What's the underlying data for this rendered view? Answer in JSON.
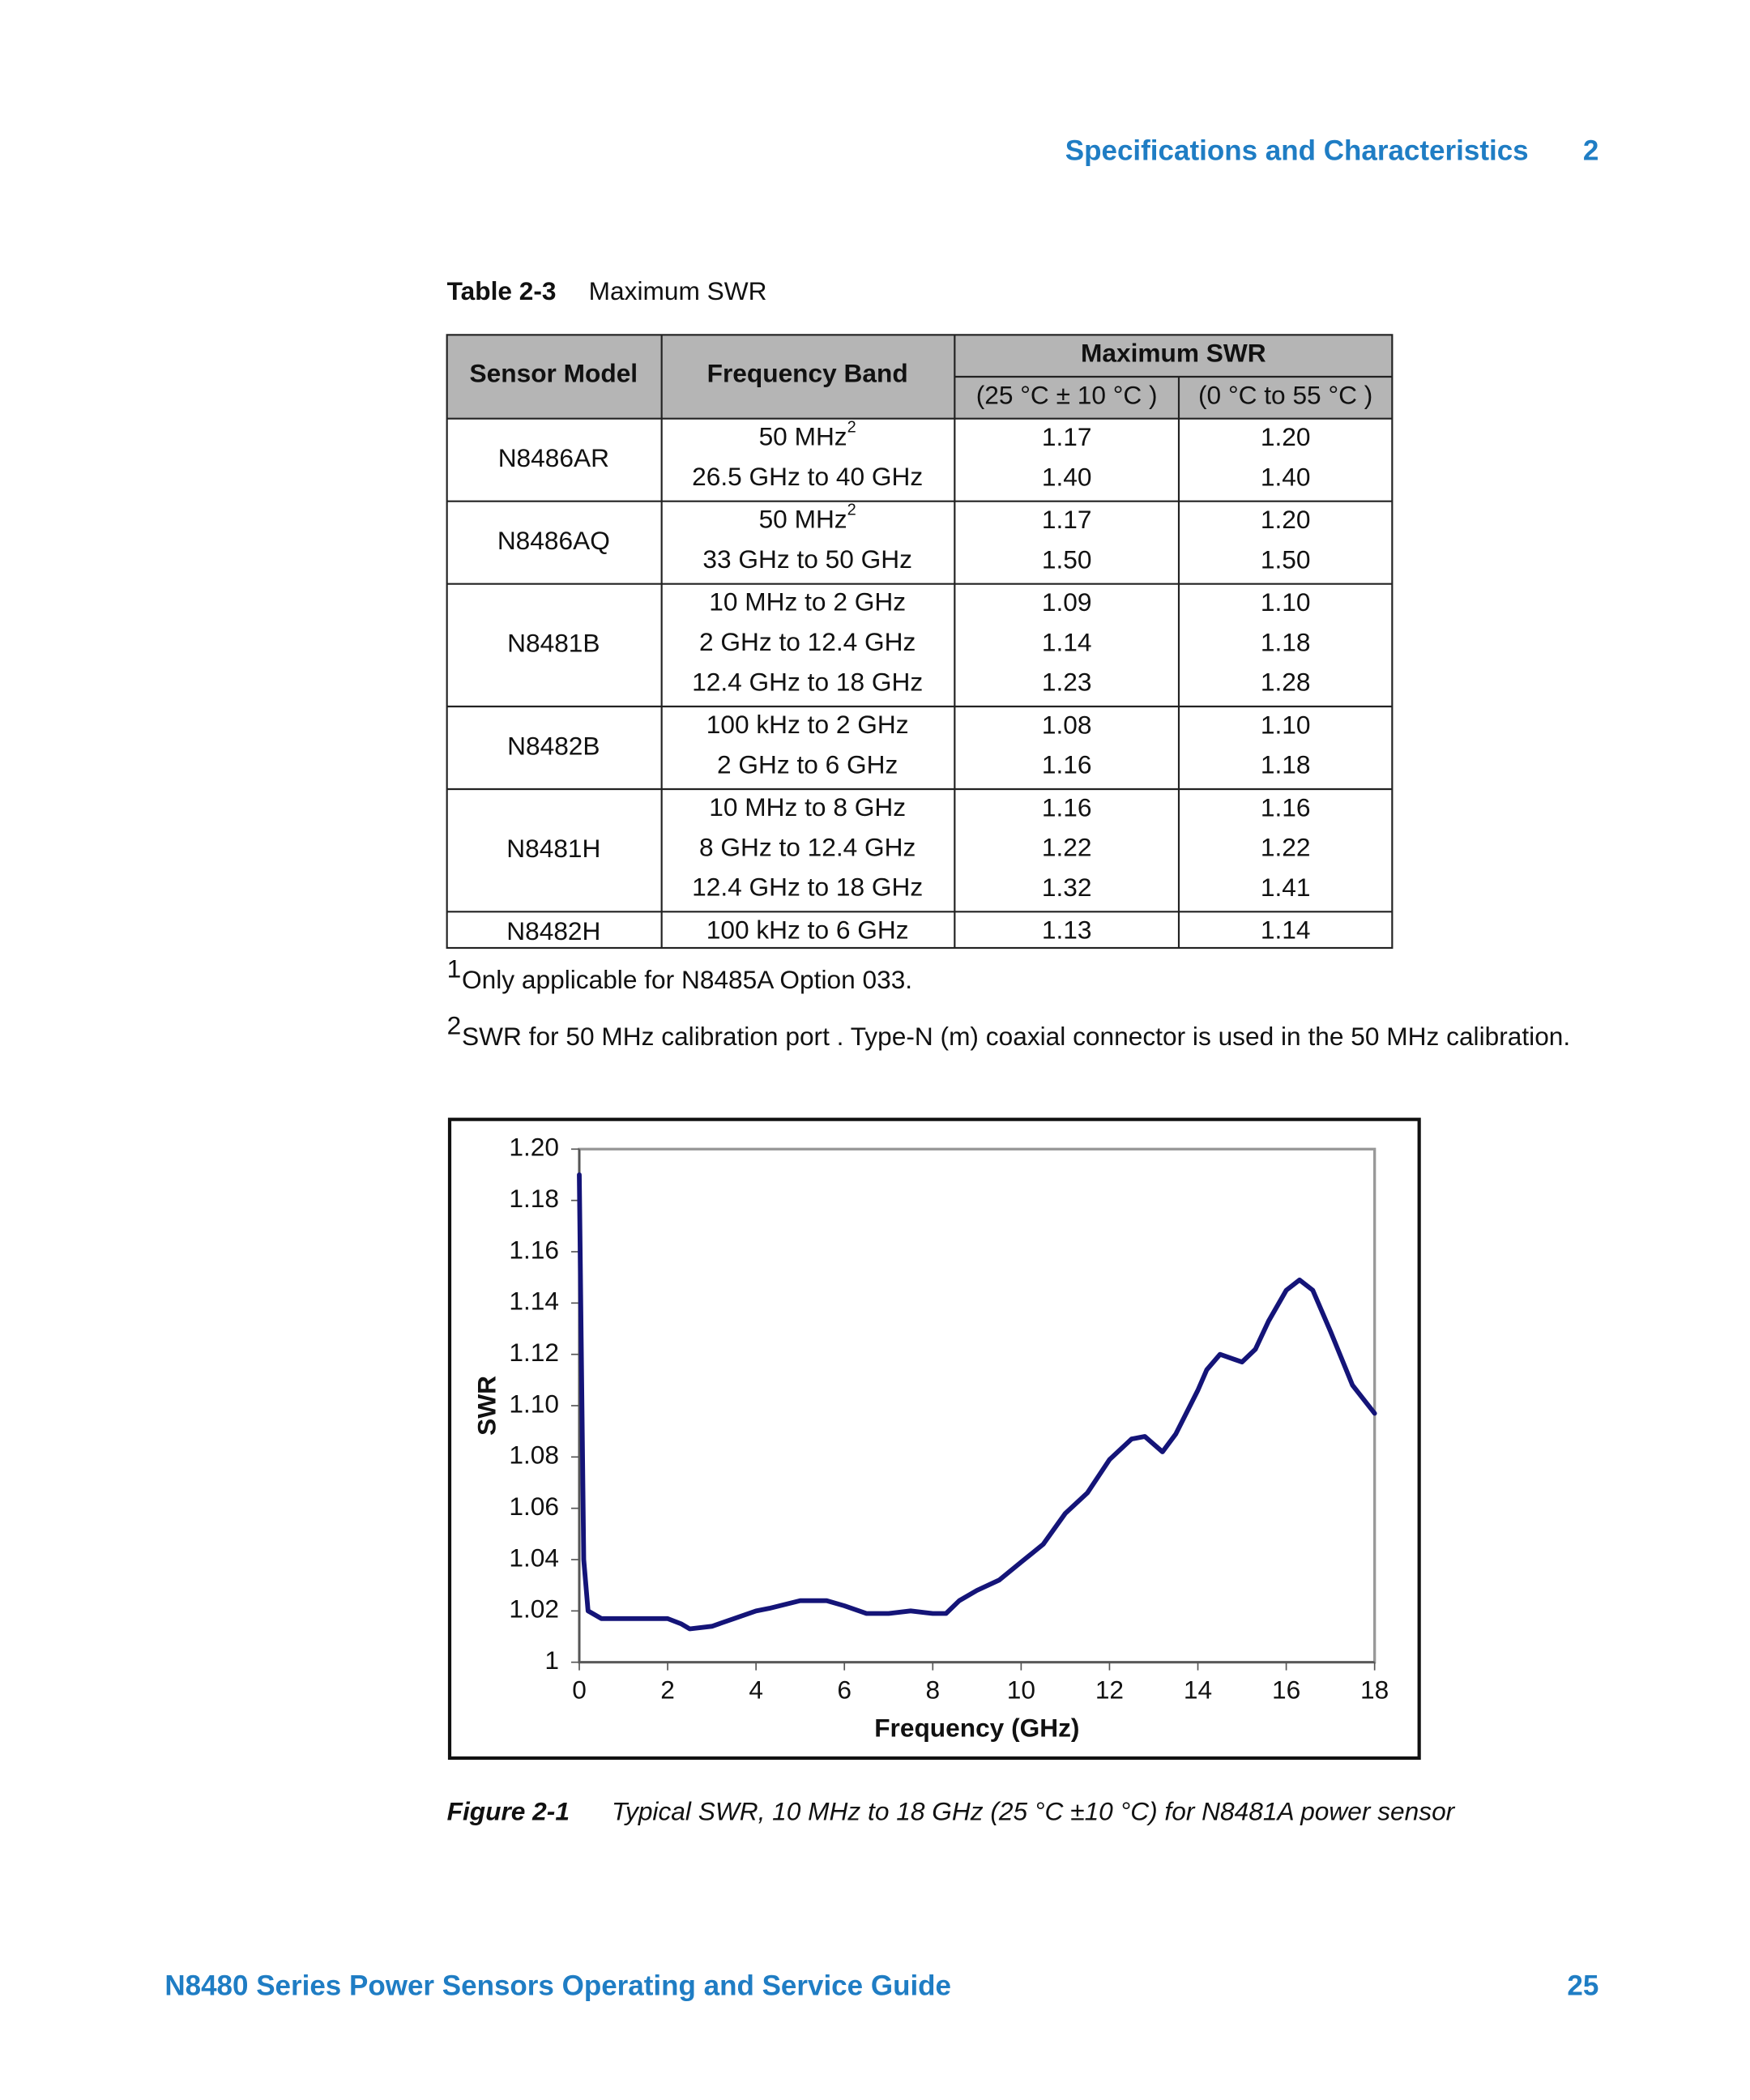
{
  "header": {
    "section": "Specifications and Characteristics",
    "chapter": "2"
  },
  "table": {
    "label": "Table 2-3",
    "title": "Maximum SWR",
    "columns": {
      "model": "Sensor Model",
      "band": "Frequency Band",
      "group": "Maximum SWR",
      "swr_a": "(25 °C ± 10 °C )",
      "swr_b": "(0 °C to 55 °C )"
    },
    "rows": [
      {
        "model": "N8486AR",
        "bands": [
          {
            "text": "50 MHz",
            "note": "2"
          },
          {
            "text": "26.5 GHz to 40 GHz"
          }
        ],
        "swr_a": [
          "1.17",
          "1.40"
        ],
        "swr_b": [
          "1.20",
          "1.40"
        ]
      },
      {
        "model": "N8486AQ",
        "bands": [
          {
            "text": "50 MHz",
            "note": "2"
          },
          {
            "text": "33 GHz to 50 GHz"
          }
        ],
        "swr_a": [
          "1.17",
          "1.50"
        ],
        "swr_b": [
          "1.20",
          "1.50"
        ]
      },
      {
        "model": "N8481B",
        "bands": [
          {
            "text": "10 MHz to 2 GHz"
          },
          {
            "text": "2 GHz to 12.4 GHz"
          },
          {
            "text": "12.4 GHz to 18 GHz"
          }
        ],
        "swr_a": [
          "1.09",
          "1.14",
          "1.23"
        ],
        "swr_b": [
          "1.10",
          "1.18",
          "1.28"
        ]
      },
      {
        "model": "N8482B",
        "bands": [
          {
            "text": "100 kHz to 2 GHz"
          },
          {
            "text": "2 GHz to 6 GHz"
          }
        ],
        "swr_a": [
          "1.08",
          "1.16"
        ],
        "swr_b": [
          "1.10",
          "1.18"
        ]
      },
      {
        "model": "N8481H",
        "bands": [
          {
            "text": "10 MHz to 8 GHz"
          },
          {
            "text": "8 GHz to 12.4 GHz"
          },
          {
            "text": "12.4 GHz to 18 GHz"
          }
        ],
        "swr_a": [
          "1.16",
          "1.22",
          "1.32"
        ],
        "swr_b": [
          "1.16",
          "1.22",
          "1.41"
        ]
      },
      {
        "model": "N8482H",
        "bands": [
          {
            "text": "100 kHz to 6 GHz"
          }
        ],
        "swr_a": [
          "1.13"
        ],
        "swr_b": [
          "1.14"
        ]
      }
    ]
  },
  "footnotes": [
    {
      "mark": "1",
      "text": "Only applicable for N8485A Option 033."
    },
    {
      "mark": "2",
      "text": "SWR for 50 MHz calibration port . Type-N (m) coaxial connector is used in the 50 MHz calibration."
    }
  ],
  "chart_data": {
    "type": "line",
    "xlabel": "Frequency (GHz)",
    "ylabel": "SWR",
    "color": "#141478",
    "x": [
      0,
      0.1,
      0.2,
      0.5,
      1,
      2,
      2.3,
      2.5,
      3,
      3.5,
      4,
      4.3,
      5,
      5.6,
      6,
      6.5,
      7,
      7.5,
      8,
      8.3,
      8.6,
      9,
      9.5,
      10,
      10.5,
      11,
      11.5,
      12,
      12.5,
      12.8,
      13.2,
      13.5,
      14,
      14.2,
      14.5,
      15,
      15.3,
      15.6,
      16,
      16.3,
      16.6,
      17,
      17.5,
      18
    ],
    "values": [
      1.19,
      1.04,
      1.02,
      1.017,
      1.017,
      1.017,
      1.015,
      1.013,
      1.014,
      1.017,
      1.02,
      1.021,
      1.024,
      1.024,
      1.022,
      1.019,
      1.019,
      1.02,
      1.019,
      1.019,
      1.024,
      1.028,
      1.032,
      1.039,
      1.046,
      1.058,
      1.066,
      1.079,
      1.087,
      1.088,
      1.082,
      1.089,
      1.106,
      1.114,
      1.12,
      1.117,
      1.122,
      1.133,
      1.145,
      1.149,
      1.145,
      1.129,
      1.108,
      1.097
    ],
    "xlim": [
      0,
      18
    ],
    "ylim": [
      1,
      1.2
    ],
    "xticks": [
      0,
      2,
      4,
      6,
      8,
      10,
      12,
      14,
      16,
      18
    ],
    "yticks": [
      1,
      1.02,
      1.04,
      1.06,
      1.08,
      {
        "value": 1.1,
        "label": "1.10"
      },
      1.12,
      1.14,
      1.16,
      1.18,
      {
        "value": 1.2,
        "label": "1.20"
      }
    ]
  },
  "figure_caption": {
    "label": "Figure 2-1",
    "text": "Typical SWR, 10 MHz to 18 GHz (25 °C ±10 °C) for N8481A power sensor"
  },
  "footer": {
    "title": "N8480 Series Power Sensors Operating and Service Guide",
    "page": "25"
  }
}
